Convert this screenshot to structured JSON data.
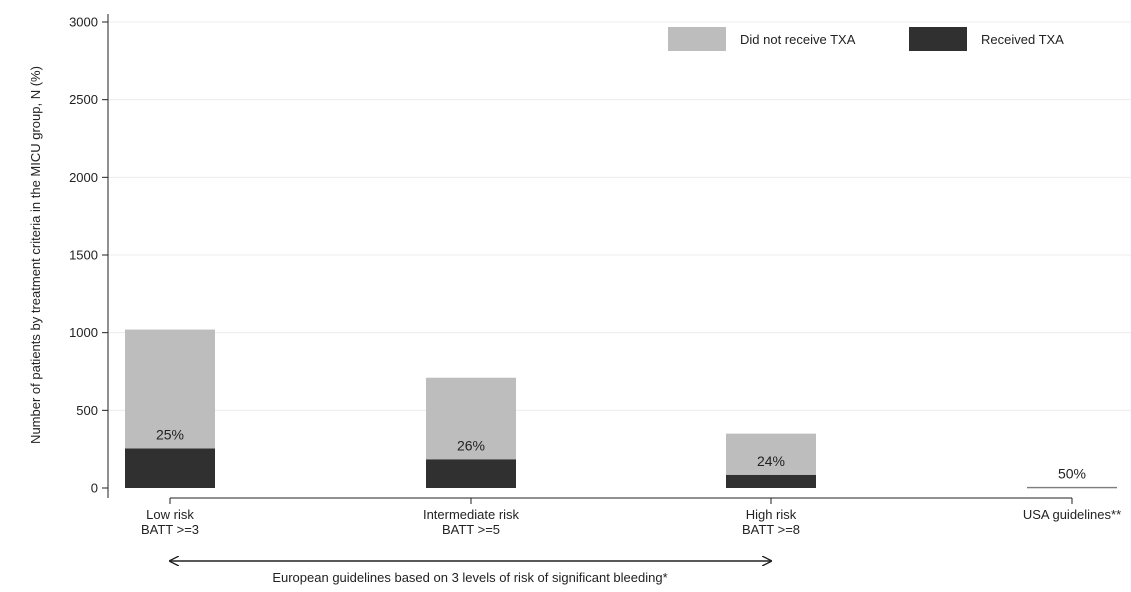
{
  "chart_data": {
    "type": "bar",
    "stacked": true,
    "ylabel": "Number of patients by treatment criteria in the MICU group, N (%)",
    "ylim": [
      0,
      3000
    ],
    "yticks": [
      0,
      500,
      1000,
      1500,
      2000,
      2500,
      3000
    ],
    "grid": true,
    "legend_position": "top-right",
    "categories": [
      {
        "line1": "Low risk",
        "line2": "BATT >=3"
      },
      {
        "line1": "Intermediate risk",
        "line2": "BATT >=5"
      },
      {
        "line1": "High risk",
        "line2": "BATT >=8"
      },
      {
        "line1": "USA guidelines**",
        "line2": ""
      }
    ],
    "series": [
      {
        "name": "Received TXA",
        "color": "#303030",
        "values": [
          255,
          185,
          85,
          4
        ]
      },
      {
        "name": "Did not receive TXA",
        "color": "#bdbdbd",
        "values": [
          765,
          525,
          265,
          4
        ]
      }
    ],
    "bar_labels": [
      "25%",
      "26%",
      "24%",
      "50%"
    ],
    "annotation": "European guidelines based on 3 levels of risk of significant bleeding*"
  }
}
